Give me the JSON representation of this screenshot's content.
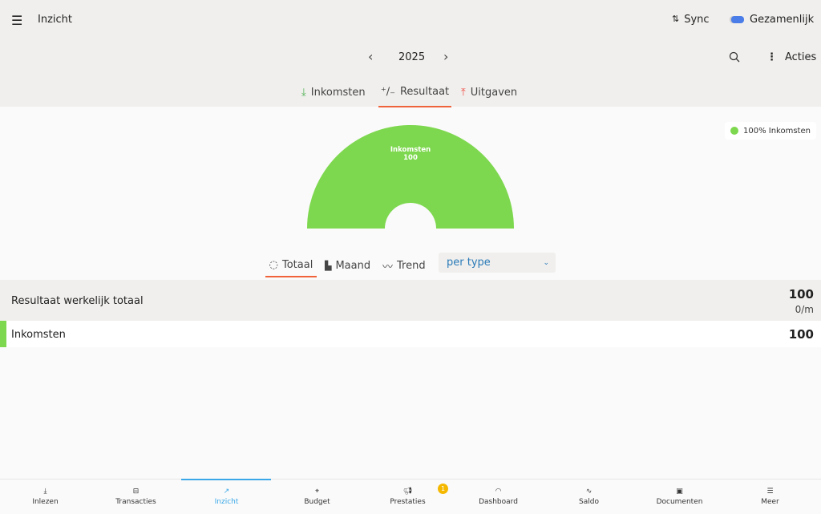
{
  "header": {
    "title": "Inzicht",
    "sync": "Sync",
    "account": "Gezamenlijk",
    "year": "2025",
    "actions": "Acties"
  },
  "tabs": [
    {
      "label": "Inkomsten"
    },
    {
      "label": "Resultaat"
    },
    {
      "label": "Uitgaven"
    }
  ],
  "chart_data": {
    "type": "pie",
    "style": "semi-donut",
    "slices": [
      {
        "label": "Inkomsten",
        "value": 100,
        "percent": 100,
        "color": "#7ed84f"
      }
    ],
    "legend": "100% Inkomsten",
    "legend_position": "top-right",
    "slice_label": "Inkomsten",
    "slice_value": "100"
  },
  "subtabs": [
    {
      "label": "Totaal"
    },
    {
      "label": "Maand"
    },
    {
      "label": "Trend"
    }
  ],
  "group_select": "per type",
  "summary": {
    "label": "Resultaat werkelijk totaal",
    "value": "100",
    "rate": "0/m"
  },
  "rows": [
    {
      "label": "Inkomsten",
      "value": "100",
      "color": "#7ed84f"
    }
  ],
  "nav": [
    {
      "label": "Inlezen"
    },
    {
      "label": "Transacties"
    },
    {
      "label": "Inzicht"
    },
    {
      "label": "Budget"
    },
    {
      "label": "Prestaties",
      "badge": "1"
    },
    {
      "label": "Dashboard"
    },
    {
      "label": "Saldo"
    },
    {
      "label": "Documenten"
    },
    {
      "label": "Meer"
    }
  ],
  "colors": {
    "accent": "#f0623a",
    "active_nav": "#3aa8e8",
    "income": "#7ed84f",
    "expense": "#f0524a"
  }
}
